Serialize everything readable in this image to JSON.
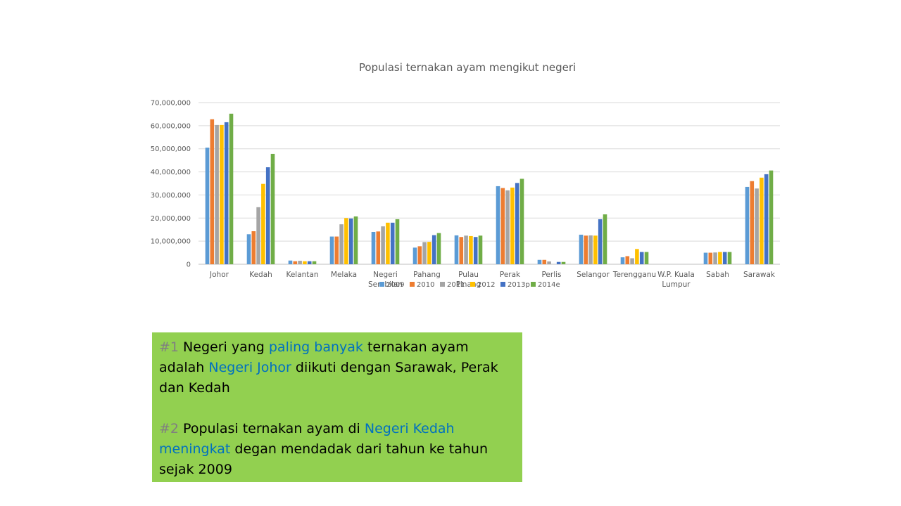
{
  "chart_data": {
    "type": "bar",
    "title": "Populasi ternakan ayam mengikut negeri",
    "xlabel": "",
    "ylabel": "",
    "ylim": [
      0,
      70000000
    ],
    "yticks": [
      0,
      10000000,
      20000000,
      30000000,
      40000000,
      50000000,
      60000000,
      70000000
    ],
    "ytick_labels": [
      "0",
      "10,000,000",
      "20,000,000",
      "30,000,000",
      "40,000,000",
      "50,000,000",
      "60,000,000",
      "70,000,000"
    ],
    "grid": true,
    "legend_position": "bottom",
    "categories": [
      [
        "Johor"
      ],
      [
        "Kedah"
      ],
      [
        "Kelantan"
      ],
      [
        "Melaka"
      ],
      [
        "Negeri",
        "Sembilan"
      ],
      [
        "Pahang"
      ],
      [
        "Pulau",
        "Pinang"
      ],
      [
        "Perak"
      ],
      [
        "Perlis"
      ],
      [
        "Selangor"
      ],
      [
        "Terengganu"
      ],
      [
        "W.P. Kuala",
        "Lumpur"
      ],
      [
        "Sabah"
      ],
      [
        "Sarawak"
      ]
    ],
    "series": [
      {
        "name": "2009",
        "color": "#5b9bd5",
        "values": [
          50500000,
          13000000,
          1600000,
          12000000,
          14000000,
          7200000,
          12500000,
          33800000,
          1900000,
          12800000,
          3000000,
          0,
          5000000,
          33500000
        ]
      },
      {
        "name": "2010",
        "color": "#ed7d31",
        "values": [
          62800000,
          14300000,
          1300000,
          12000000,
          14200000,
          7800000,
          11800000,
          33000000,
          1900000,
          12400000,
          3500000,
          0,
          5000000,
          36000000
        ]
      },
      {
        "name": "2011",
        "color": "#a5a5a5",
        "values": [
          60300000,
          24700000,
          1500000,
          17300000,
          16400000,
          9600000,
          12400000,
          32000000,
          1200000,
          12500000,
          2600000,
          0,
          5100000,
          32800000
        ]
      },
      {
        "name": "2012",
        "color": "#ffc000",
        "values": [
          60300000,
          34800000,
          1300000,
          20000000,
          18000000,
          9700000,
          12200000,
          33200000,
          0,
          12400000,
          6600000,
          0,
          5300000,
          37500000
        ]
      },
      {
        "name": "2013p",
        "color": "#4472c4",
        "values": [
          61500000,
          42000000,
          1300000,
          19800000,
          18000000,
          12600000,
          11800000,
          35200000,
          1000000,
          19500000,
          5300000,
          0,
          5300000,
          39000000
        ]
      },
      {
        "name": "2014e",
        "color": "#70ad47",
        "values": [
          65200000,
          47800000,
          1300000,
          20700000,
          19500000,
          13500000,
          12400000,
          37000000,
          1000000,
          21600000,
          5300000,
          0,
          5300000,
          40600000
        ]
      }
    ]
  },
  "notes": {
    "p1": {
      "num": "#1",
      "t1": " Negeri yang ",
      "h1": "paling banyak",
      "t2": " ternakan ayam adalah ",
      "h2": "Negeri Johor",
      "t3": " diikuti dengan Sarawak, Perak dan Kedah"
    },
    "p2": {
      "num": "#2",
      "t1": " Populasi ternakan ayam di ",
      "h1": "Negeri Kedah meningkat",
      "t2": " degan mendadak dari tahun ke tahun sejak 2009"
    },
    "colors": {
      "box": "#92d050",
      "number": "#808080",
      "highlight": "#0070c0"
    }
  }
}
